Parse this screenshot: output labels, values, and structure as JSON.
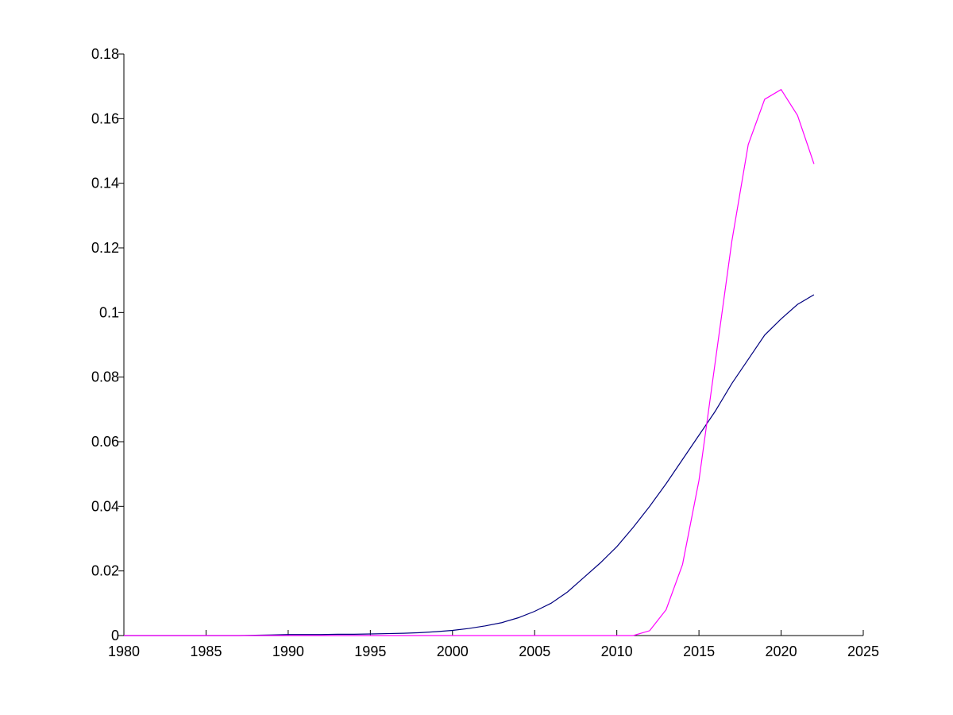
{
  "chart_data": {
    "type": "line",
    "x": [
      1980,
      1981,
      1982,
      1983,
      1984,
      1985,
      1986,
      1987,
      1988,
      1989,
      1990,
      1991,
      1992,
      1993,
      1994,
      1995,
      1996,
      1997,
      1998,
      1999,
      2000,
      2001,
      2002,
      2003,
      2004,
      2005,
      2006,
      2007,
      2008,
      2009,
      2010,
      2011,
      2012,
      2013,
      2014,
      2015,
      2016,
      2017,
      2018,
      2019,
      2020,
      2021,
      2022
    ],
    "series": [
      {
        "color": "#00007f",
        "values": [
          0,
          0,
          0,
          0,
          0,
          0,
          0,
          0,
          0.0001,
          0.0002,
          0.0003,
          0.0003,
          0.0003,
          0.0004,
          0.0004,
          0.0005,
          0.0006,
          0.0007,
          0.0009,
          0.0012,
          0.0016,
          0.0022,
          0.003,
          0.004,
          0.0055,
          0.0075,
          0.01,
          0.0135,
          0.018,
          0.0225,
          0.0275,
          0.0335,
          0.04,
          0.047,
          0.0545,
          0.062,
          0.0695,
          0.078,
          0.0855,
          0.093,
          0.098,
          0.1025,
          0.1055
        ]
      },
      {
        "color": "#ff00ff",
        "values": [
          0,
          0,
          0,
          0,
          0,
          0,
          0,
          0,
          0,
          0,
          0,
          0,
          0,
          0,
          0,
          0,
          0,
          0,
          0,
          0,
          0,
          0,
          0,
          0,
          0,
          0,
          0,
          0,
          0,
          0,
          0,
          0,
          0.0015,
          0.008,
          0.022,
          0.048,
          0.085,
          0.122,
          0.152,
          0.166,
          0.169,
          0.161,
          0.146
        ]
      }
    ],
    "xlim": [
      1980,
      2025
    ],
    "xticks": [
      1980,
      1985,
      1990,
      1995,
      2000,
      2005,
      2010,
      2015,
      2020,
      2025
    ],
    "ylim": [
      0,
      0.18
    ],
    "yticks": [
      0,
      0.02,
      0.04,
      0.06,
      0.08,
      0.1,
      0.12,
      0.14,
      0.16,
      0.18
    ]
  }
}
